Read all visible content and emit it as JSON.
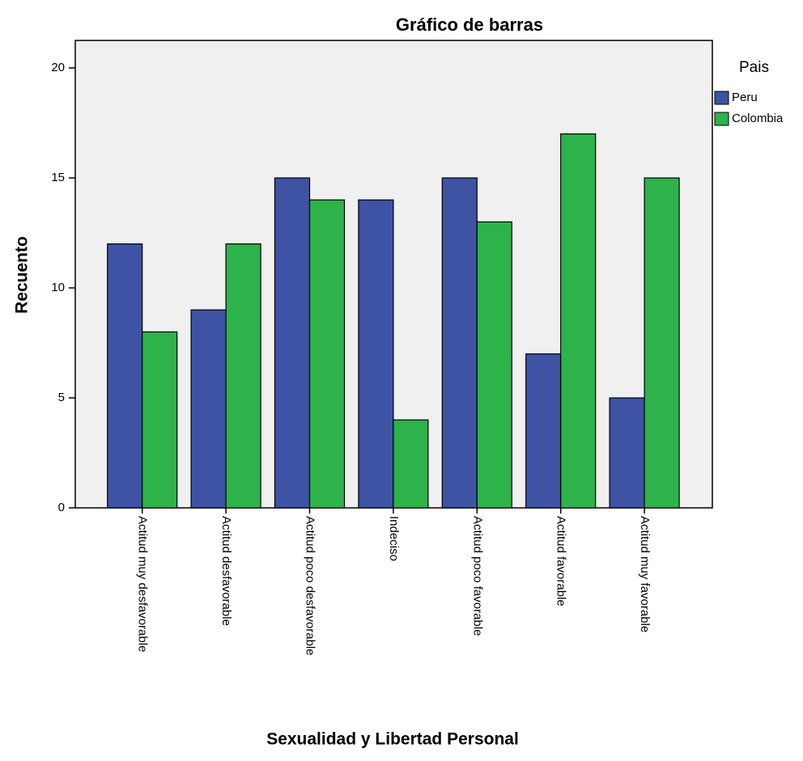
{
  "chart_data": {
    "type": "bar",
    "title": "Gráfico de barras",
    "x_label": "Sexualidad y Libertad Personal",
    "y_label": "Recuento",
    "categories": [
      "Actitud muy desfavorable",
      "Actitud desfavorable",
      "Actitud poco desfavorable",
      "Indeciso",
      "Actitud poco favorable",
      "Actitud favorable",
      "Actitud muy favorable"
    ],
    "series": [
      {
        "name": "Peru",
        "color": "#3e53a4",
        "values": [
          12,
          9,
          15,
          14,
          15,
          7,
          5
        ]
      },
      {
        "name": "Colombia",
        "color": "#2db34a",
        "values": [
          8,
          12,
          14,
          4,
          13,
          17,
          15
        ]
      }
    ],
    "legend_title": "Pais",
    "ylim": [
      0,
      21.25
    ],
    "yticks": [
      0,
      5,
      10,
      15,
      20
    ],
    "grid": false
  }
}
